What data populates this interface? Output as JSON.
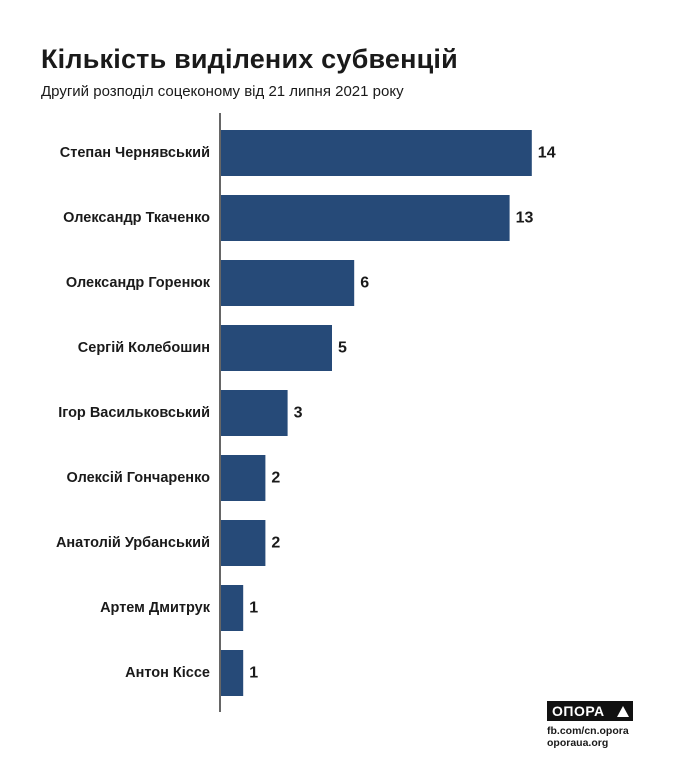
{
  "header": {
    "title": "Кількість виділених субвенцій",
    "subtitle": "Другий розподіл соцекономy від 21 липня 2021 року"
  },
  "chart_data": {
    "type": "bar",
    "orientation": "horizontal",
    "categories": [
      "Степан Чернявський",
      "Олександр Ткаченко",
      "Олександр Горенюк",
      "Сергій Колебошин",
      "Ігор Васильковський",
      "Олексій Гончаренко",
      "Анатолій Урбанський",
      "Артем Дмитрук",
      "Антон Кіссе"
    ],
    "values": [
      14,
      13,
      6,
      5,
      3,
      2,
      2,
      1,
      1
    ],
    "bar_color": "#264a78",
    "axis_color": "#333333",
    "xlim": [
      0,
      14
    ],
    "grid": false,
    "legend": "none",
    "data_labels": true
  },
  "brand": {
    "logo_text": "ОПОРА",
    "logo_icon": "triangle-icon",
    "links": [
      "fb.com/cn.opora",
      "oporaua.org"
    ]
  }
}
